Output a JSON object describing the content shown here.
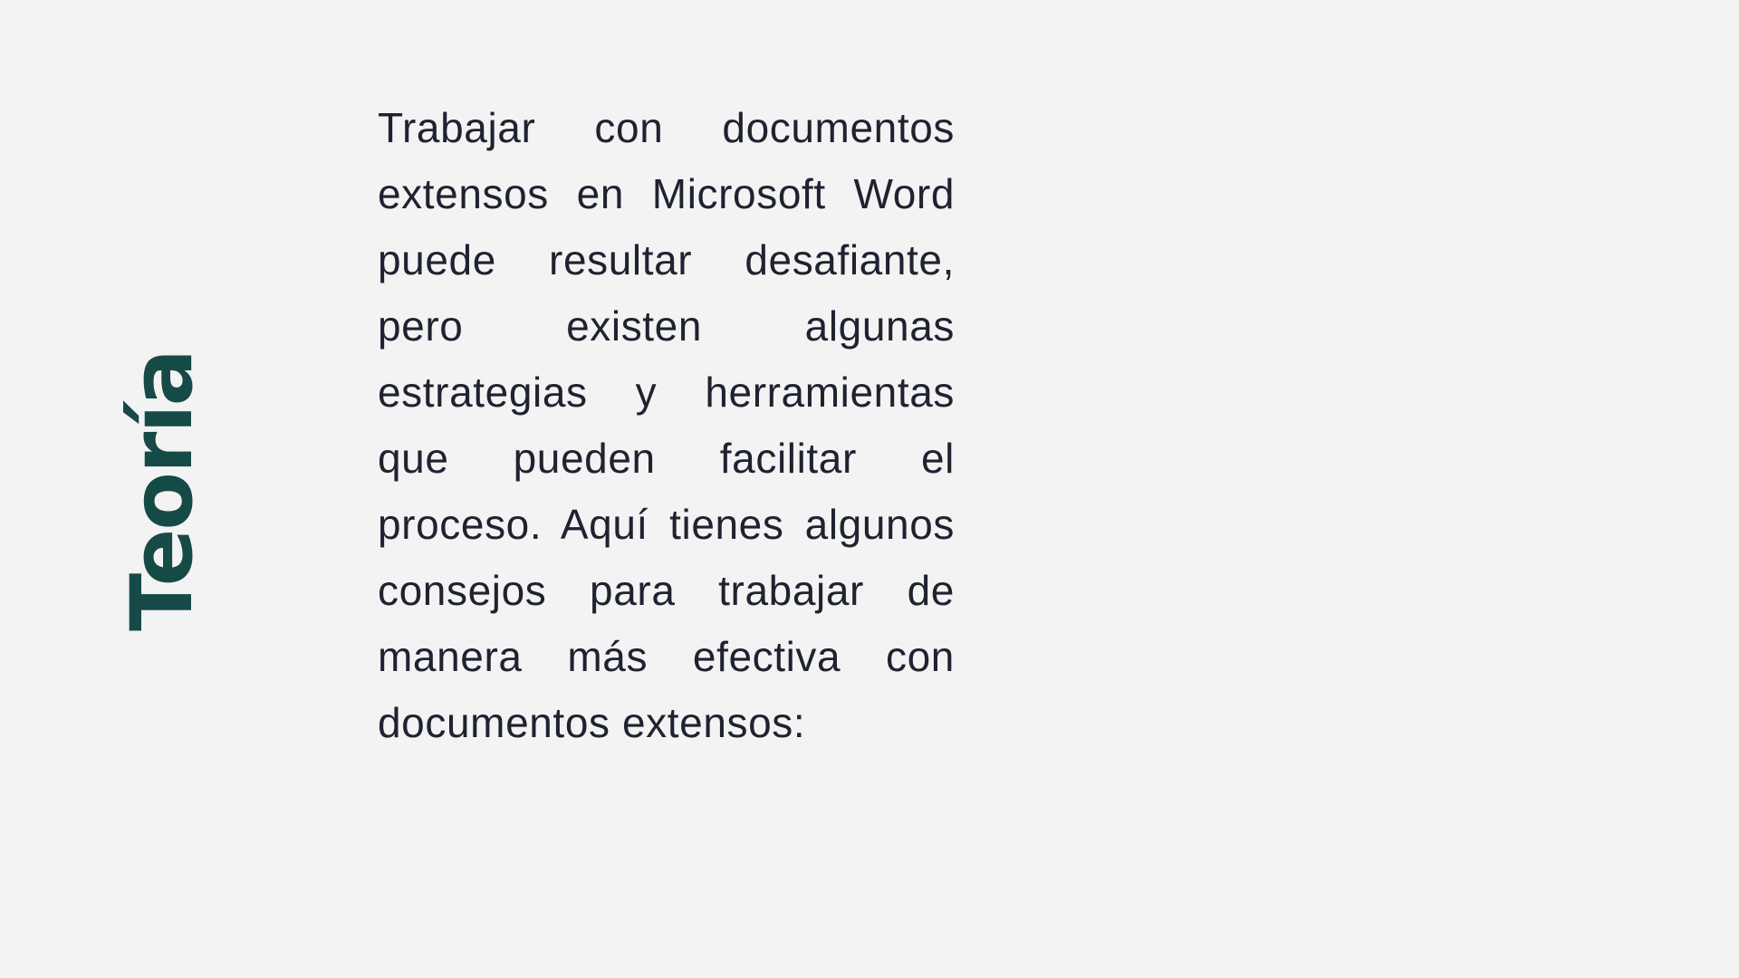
{
  "slide": {
    "title": "Teoría",
    "paragraph": "Trabajar con documentos extensos en Microsoft Word puede resultar desafiante, pero existen algunas estrategias y herramientas que pueden facilitar el proceso. Aquí tienes algunos consejos para trabajar de manera más efectiva con documentos extensos:"
  },
  "colors": {
    "background": "#f3f3f3",
    "title": "#164a47",
    "text": "#1f2230"
  }
}
